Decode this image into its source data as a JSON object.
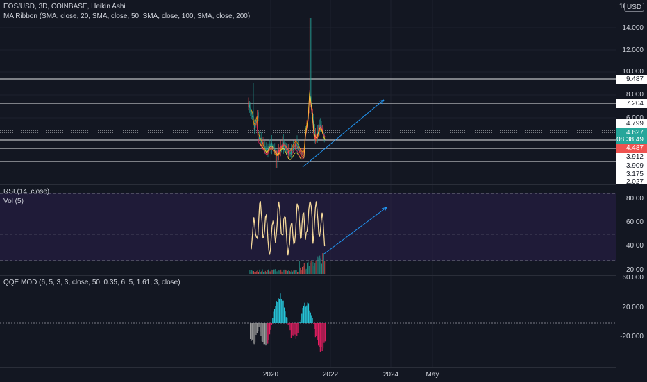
{
  "header": {
    "symbol_line": "EOS/USD, 3D, COINBASE, Heikin Ashi",
    "ma_ribbon": "MA Ribbon (SMA, close, 20, SMA, close, 50, SMA, close, 100, SMA, close, 200)",
    "currency": "USD"
  },
  "price_axis": {
    "ticks": [
      "16",
      "14.000",
      "12.000",
      "10.000",
      "8.000",
      "6.000"
    ],
    "tags": [
      {
        "text": "9.487",
        "style": "line"
      },
      {
        "text": "7.204",
        "style": "line"
      },
      {
        "text": "4.799",
        "style": "line"
      },
      {
        "text": "4.627",
        "style": "current"
      },
      {
        "text": "08:38:49",
        "style": "current"
      },
      {
        "text": "4.487",
        "style": "red"
      },
      {
        "text": "3.912",
        "style": "line"
      },
      {
        "text": "3.909",
        "style": "line"
      },
      {
        "text": "3.175",
        "style": "line"
      },
      {
        "text": "2.027",
        "style": "line"
      }
    ]
  },
  "rsi_panel": {
    "title": "RSI (14, close)",
    "vol": "Vol (5)",
    "ticks": [
      "80.00",
      "60.00",
      "40.00",
      "20.00"
    ]
  },
  "qqe_panel": {
    "title": "QQE MOD (6, 5, 3, 3, close, 50, 0.35, 6, 5, 1.61, 3, close)",
    "ticks": [
      "60.000",
      "20.000",
      "-20.000"
    ]
  },
  "time_axis": {
    "labels": [
      "2020",
      "2022",
      "2024",
      "May"
    ]
  },
  "colors": {
    "background": "#131722",
    "up": "#26a69a",
    "down": "#ef5350",
    "rsi_line": "#f5d99a",
    "rsi_band": "#2a1f4a",
    "qqe_up": "#26c6da",
    "qqe_down": "#e91e63",
    "qqe_neutral": "#9e9e9e",
    "trendline": "#2196f3"
  }
}
